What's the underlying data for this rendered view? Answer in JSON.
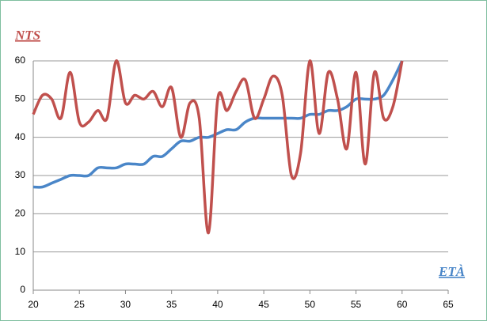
{
  "chart_data": {
    "type": "line",
    "y_label": "NTS",
    "x_label": "ETÀ",
    "x": [
      20,
      21,
      22,
      23,
      24,
      25,
      26,
      27,
      28,
      29,
      30,
      31,
      32,
      33,
      34,
      35,
      36,
      37,
      38,
      39,
      40,
      41,
      42,
      43,
      44,
      45,
      46,
      47,
      48,
      49,
      50,
      51,
      52,
      53,
      54,
      55,
      56,
      57,
      58,
      59,
      60
    ],
    "series": [
      {
        "name": "",
        "color": "#4a86c8",
        "values": [
          27,
          27,
          28,
          29,
          30,
          30,
          30,
          32,
          32,
          32,
          33,
          33,
          33,
          35,
          35,
          37,
          39,
          39,
          40,
          40,
          41,
          42,
          42,
          44,
          45,
          45,
          45,
          45,
          45,
          45,
          46,
          46,
          47,
          47,
          48,
          50,
          50,
          50,
          51,
          55,
          60
        ]
      },
      {
        "name": "",
        "color": "#c0504d",
        "values": [
          46,
          51,
          50,
          45,
          57,
          44,
          44,
          47,
          45,
          60,
          49,
          51,
          50,
          52,
          48,
          53,
          40,
          49,
          45,
          15,
          50,
          47,
          52,
          55,
          45,
          50,
          56,
          51,
          30,
          36,
          60,
          41,
          57,
          50,
          37,
          57,
          33,
          57,
          45,
          48,
          60
        ]
      }
    ],
    "xlim": [
      20,
      65
    ],
    "xticks": [
      20,
      25,
      30,
      35,
      40,
      45,
      50,
      55,
      60,
      65
    ],
    "ylim": [
      0,
      60
    ],
    "yticks": [
      0,
      10,
      20,
      30,
      40,
      50,
      60
    ],
    "grid": true
  }
}
